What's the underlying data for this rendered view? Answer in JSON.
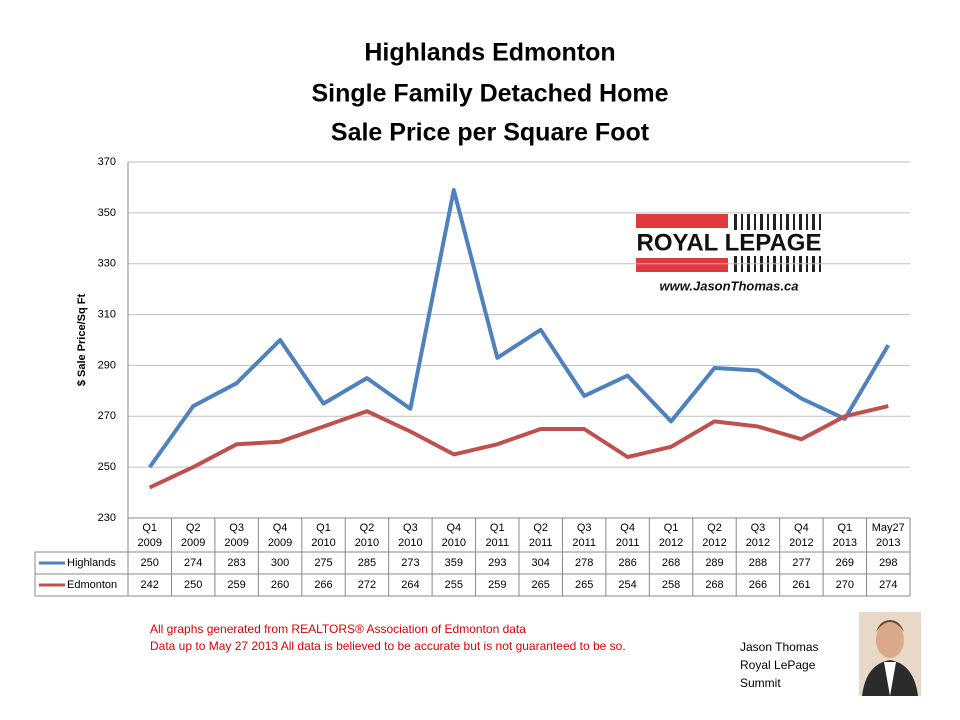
{
  "chart_data": {
    "type": "line",
    "title_lines": [
      "Highlands Edmonton",
      "Single Family Detached Home",
      "Sale Price per Square Foot"
    ],
    "y_label": "$ Sale Price/Sq Ft",
    "categories": [
      [
        "Q1",
        "2009"
      ],
      [
        "Q2",
        "2009"
      ],
      [
        "Q3",
        "2009"
      ],
      [
        "Q4",
        "2009"
      ],
      [
        "Q1",
        "2010"
      ],
      [
        "Q2",
        "2010"
      ],
      [
        "Q3",
        "2010"
      ],
      [
        "Q4",
        "2010"
      ],
      [
        "Q1",
        "2011"
      ],
      [
        "Q2",
        "2011"
      ],
      [
        "Q3",
        "2011"
      ],
      [
        "Q4",
        "2011"
      ],
      [
        "Q1",
        "2012"
      ],
      [
        "Q2",
        "2012"
      ],
      [
        "Q3",
        "2012"
      ],
      [
        "Q4",
        "2012"
      ],
      [
        "Q1",
        "2013"
      ],
      [
        "May27",
        "2013"
      ]
    ],
    "series": [
      {
        "name": "Highlands",
        "color": "#4f81bd",
        "values": [
          250,
          274,
          283,
          300,
          275,
          285,
          273,
          359,
          293,
          304,
          278,
          286,
          268,
          289,
          288,
          277,
          269,
          298
        ]
      },
      {
        "name": "Edmonton",
        "color": "#c0504d",
        "values": [
          242,
          250,
          259,
          260,
          266,
          272,
          264,
          255,
          259,
          265,
          265,
          254,
          258,
          268,
          266,
          261,
          270,
          274
        ]
      }
    ],
    "ylim": [
      230,
      370
    ],
    "yticks": [
      230,
      250,
      270,
      290,
      310,
      330,
      350,
      370
    ],
    "grid": true,
    "logo": {
      "brand": "ROYAL LEPAGE",
      "website": "www.JasonThomas.ca"
    },
    "footnotes": [
      "All graphs generated from REALTORS® Association of Edmonton data",
      "Data up to  May 27 2013  All data is believed to be accurate but is not guaranteed to be so."
    ],
    "agent": [
      "Jason Thomas",
      "Royal LePage",
      "Summit"
    ]
  }
}
